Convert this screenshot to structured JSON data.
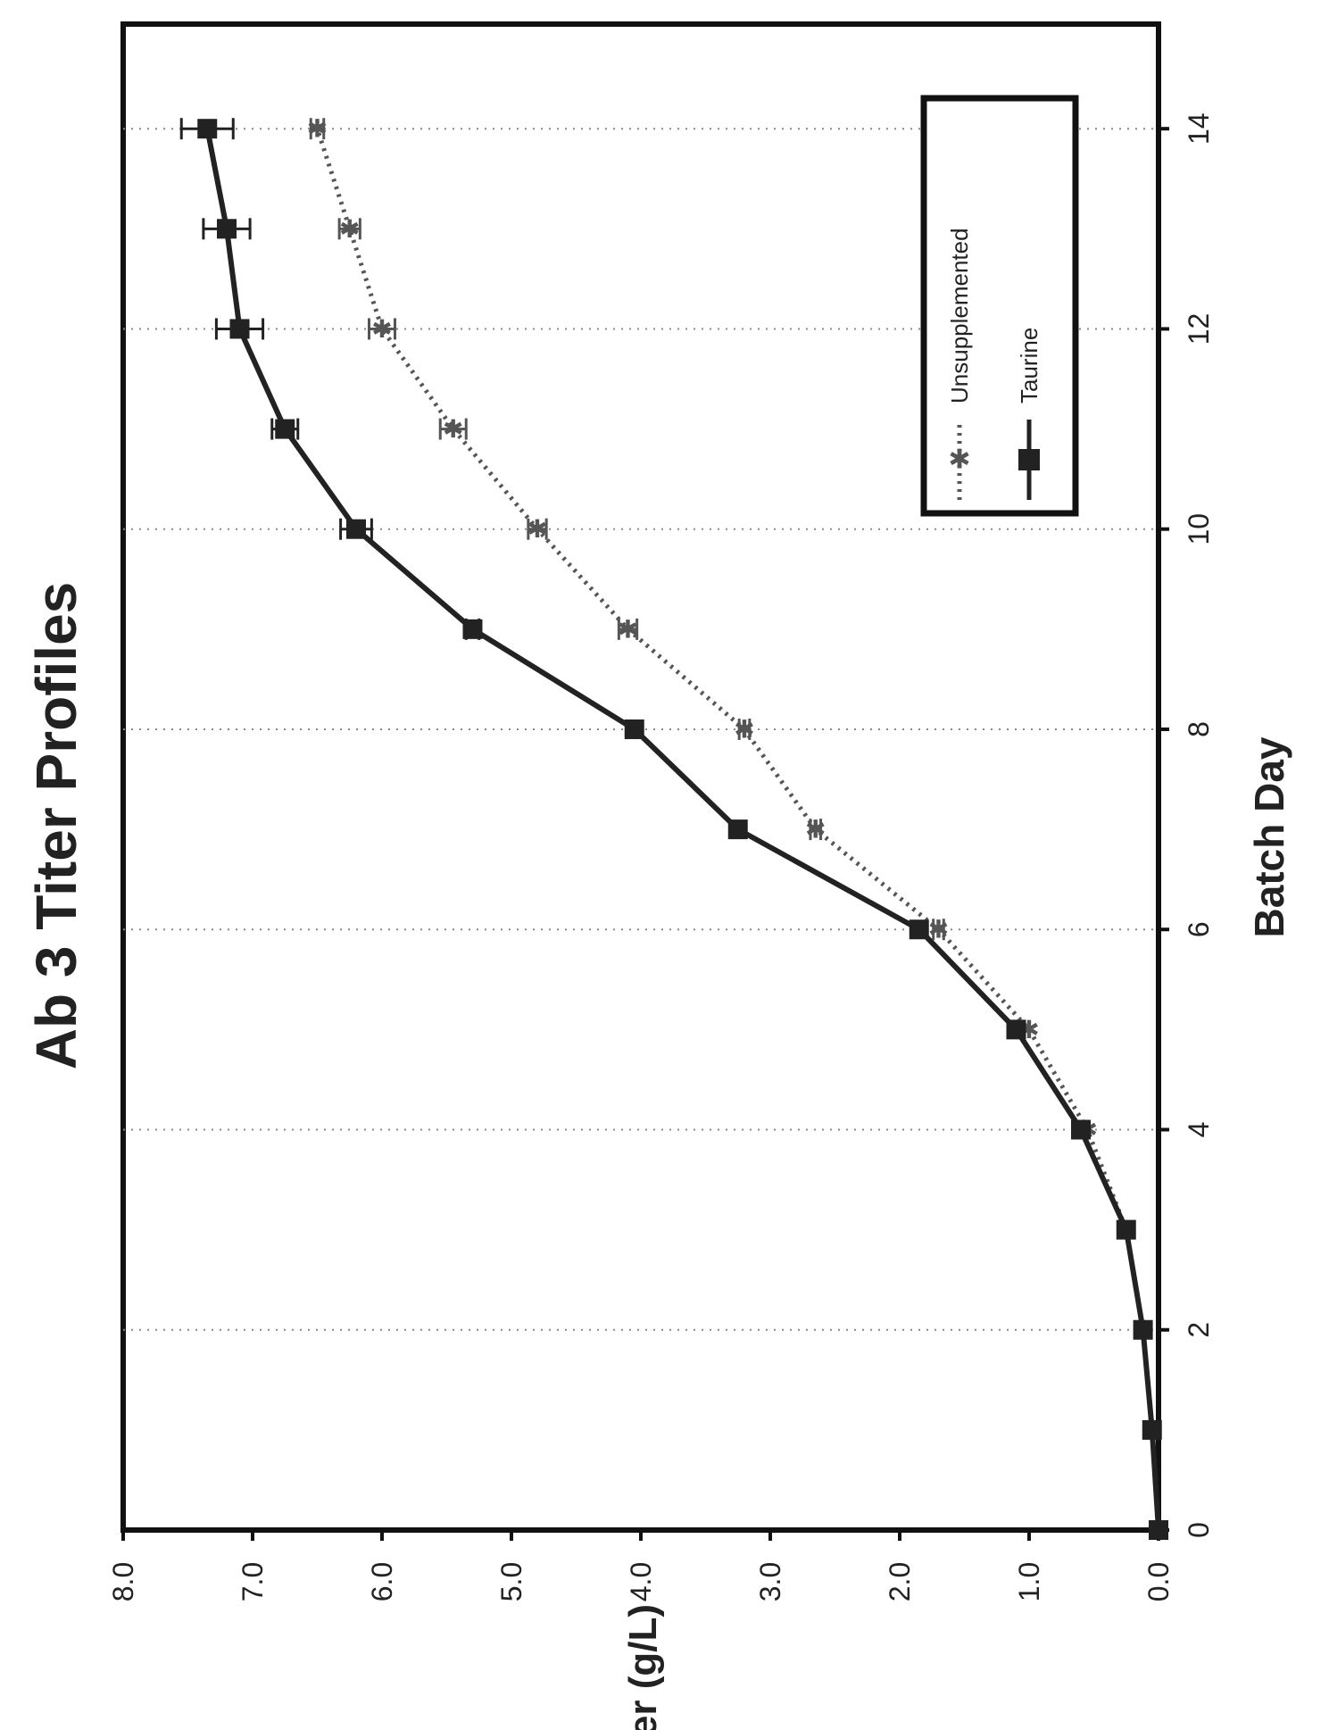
{
  "chart_data": {
    "type": "line",
    "title": "Ab 3 Titer Profiles",
    "xlabel": "Batch Day",
    "ylabel": "Titer (g/L)",
    "xlim": [
      0,
      15
    ],
    "ylim": [
      0,
      8
    ],
    "x_ticks": [
      0,
      2,
      4,
      6,
      8,
      10,
      12,
      14
    ],
    "y_ticks": [
      "0.0",
      "1.0",
      "2.0",
      "3.0",
      "4.0",
      "5.0",
      "6.0",
      "7.0",
      "8.0"
    ],
    "grid": "dotted vertical gridlines at x ticks",
    "legend_position": "top-right",
    "series": [
      {
        "name": "Unsupplemented",
        "color": "#555555",
        "line_style": "dotted",
        "marker": "star",
        "x": [
          0,
          1,
          2,
          3,
          4,
          5,
          6,
          7,
          8,
          9,
          10,
          11,
          12,
          13,
          14
        ],
        "y": [
          0.0,
          0.05,
          0.12,
          0.25,
          0.55,
          1.0,
          1.7,
          2.65,
          3.2,
          4.1,
          4.8,
          5.45,
          6.0,
          6.25,
          6.5
        ],
        "error": [
          0,
          0,
          0,
          0,
          0,
          0,
          0.04,
          0.04,
          0.04,
          0.07,
          0.07,
          0.1,
          0.1,
          0.08,
          0.05
        ]
      },
      {
        "name": "Taurine",
        "color": "#222222",
        "line_style": "solid",
        "marker": "square",
        "x": [
          0,
          1,
          2,
          3,
          4,
          5,
          6,
          7,
          8,
          9,
          10,
          11,
          12,
          13,
          14
        ],
        "y": [
          0.0,
          0.05,
          0.12,
          0.25,
          0.6,
          1.1,
          1.85,
          3.25,
          4.05,
          5.3,
          6.2,
          6.75,
          7.1,
          7.2,
          7.35
        ],
        "error": [
          0,
          0,
          0,
          0,
          0,
          0,
          0,
          0,
          0,
          0.05,
          0.12,
          0.1,
          0.18,
          0.18,
          0.2
        ]
      }
    ]
  }
}
